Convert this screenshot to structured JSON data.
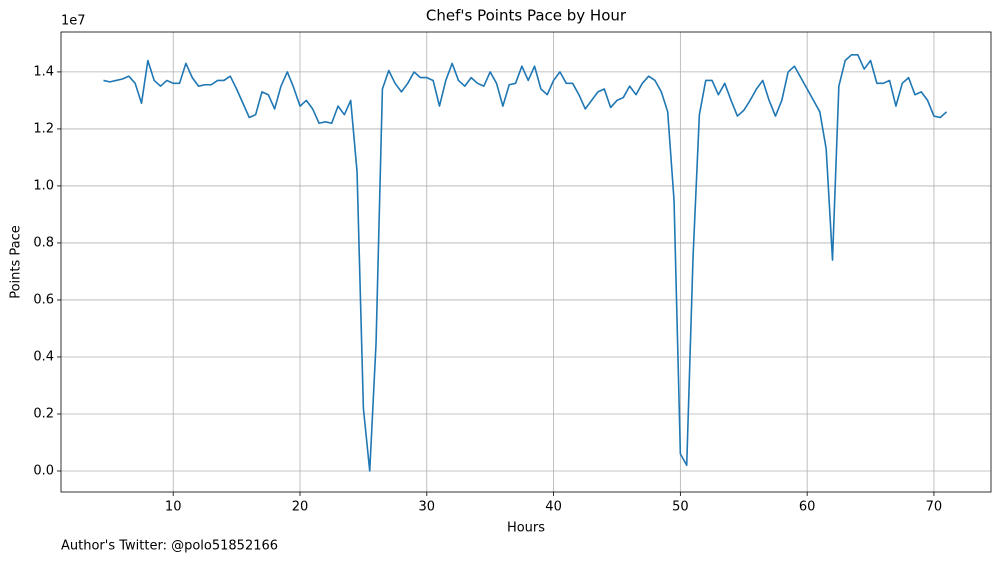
{
  "chart_data": {
    "type": "line",
    "title": "Chef's Points Pace by Hour",
    "x_label": "Hours",
    "y_label": "Points Pace",
    "y_offset_label": "1e7",
    "footer": "Author's Twitter: @polo51852166",
    "color": "#1f77b4",
    "grid": true,
    "xlim": [
      1.15,
      74.5
    ],
    "ylim": [
      -737000,
      15400000
    ],
    "xticks": [
      10,
      20,
      30,
      40,
      50,
      60,
      70
    ],
    "yticks": [
      {
        "value": 0,
        "label": "0.0"
      },
      {
        "value": 2000000,
        "label": "0.2"
      },
      {
        "value": 4000000,
        "label": "0.4"
      },
      {
        "value": 6000000,
        "label": "0.6"
      },
      {
        "value": 8000000,
        "label": "0.8"
      },
      {
        "value": 10000000,
        "label": "1.0"
      },
      {
        "value": 12000000,
        "label": "1.2"
      },
      {
        "value": 14000000,
        "label": "1.4"
      }
    ],
    "x": [
      4.5,
      5,
      5.5,
      6,
      6.5,
      7,
      7.5,
      8,
      8.5,
      9,
      9.5,
      10,
      10.5,
      11,
      11.5,
      12,
      12.5,
      13,
      13.5,
      14,
      14.5,
      15,
      15.5,
      16,
      16.5,
      17,
      17.5,
      18,
      18.5,
      19,
      19.5,
      20,
      20.5,
      21,
      21.5,
      22,
      22.5,
      23,
      23.5,
      24,
      24.5,
      25,
      25.5,
      26,
      26.5,
      27,
      27.5,
      28,
      28.5,
      29,
      29.5,
      30,
      30.5,
      31,
      31.5,
      32,
      32.5,
      33,
      33.5,
      34,
      34.5,
      35,
      35.5,
      36,
      36.5,
      37,
      37.5,
      38,
      38.5,
      39,
      39.5,
      40,
      40.5,
      41,
      41.5,
      42,
      42.5,
      43,
      43.5,
      44,
      44.5,
      45,
      45.5,
      46,
      46.5,
      47,
      47.5,
      48,
      48.5,
      49,
      49.5,
      50,
      50.5,
      51,
      51.5,
      52,
      52.5,
      53,
      53.5,
      54,
      54.5,
      55,
      55.5,
      56,
      56.5,
      57,
      57.5,
      58,
      58.5,
      59,
      59.5,
      60,
      60.5,
      61,
      61.5,
      62,
      62.5,
      63,
      63.5,
      64,
      64.5,
      65,
      65.5,
      66,
      66.5,
      67,
      67.5,
      68,
      68.5,
      69,
      69.5,
      70,
      70.5,
      71
    ],
    "values": [
      13700000,
      13650000,
      13700000,
      13750000,
      13850000,
      13600000,
      12900000,
      14400000,
      13700000,
      13500000,
      13700000,
      13600000,
      13600000,
      14300000,
      13800000,
      13500000,
      13550000,
      13550000,
      13700000,
      13700000,
      13850000,
      13400000,
      12900000,
      12400000,
      12500000,
      13300000,
      13200000,
      12700000,
      13500000,
      14000000,
      13450000,
      12800000,
      13000000,
      12700000,
      12200000,
      12250000,
      12200000,
      12800000,
      12500000,
      13000000,
      10500000,
      2200000,
      0,
      4500000,
      13400000,
      14050000,
      13600000,
      13300000,
      13600000,
      14000000,
      13800000,
      13800000,
      13700000,
      12800000,
      13700000,
      14300000,
      13700000,
      13500000,
      13800000,
      13600000,
      13500000,
      14000000,
      13600000,
      12800000,
      13550000,
      13600000,
      14200000,
      13700000,
      14200000,
      13400000,
      13200000,
      13700000,
      14000000,
      13600000,
      13600000,
      13200000,
      12700000,
      13000000,
      13300000,
      13400000,
      12750000,
      13000000,
      13100000,
      13500000,
      13200000,
      13600000,
      13850000,
      13700000,
      13300000,
      12600000,
      9500000,
      600000,
      200000,
      7500000,
      12500000,
      13700000,
      13700000,
      13200000,
      13600000,
      13000000,
      12450000,
      12650000,
      13000000,
      13400000,
      13700000,
      13000000,
      12450000,
      13000000,
      14000000,
      14200000,
      13800000,
      13400000,
      13000000,
      12600000,
      11300000,
      7400000,
      13500000,
      14400000,
      14600000,
      14600000,
      14100000,
      14400000,
      13600000,
      13600000,
      13700000,
      12800000,
      13600000,
      13800000,
      13200000,
      13300000,
      13000000,
      12450000,
      12400000,
      12600000
    ]
  }
}
